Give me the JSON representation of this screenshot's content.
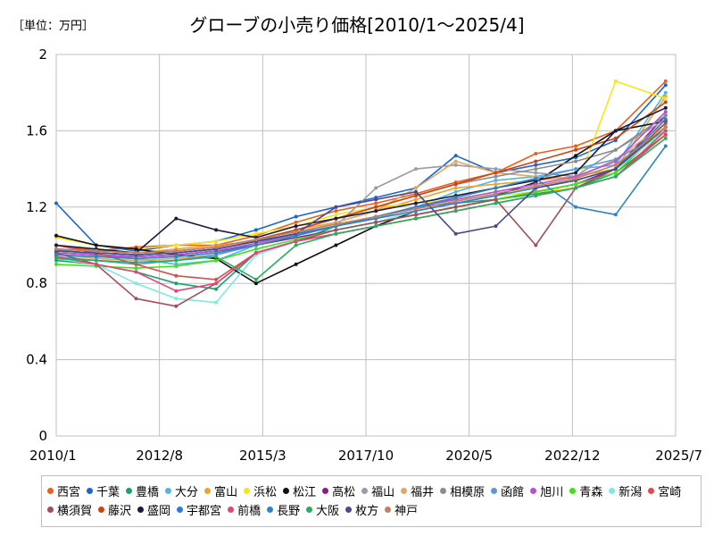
{
  "chart_data": {
    "type": "line",
    "title": "グローブの小売り価格[2010/1～2025/4]",
    "unit_label": "［単位：万円］",
    "xlabel": "",
    "ylabel": "",
    "x_tick_labels": [
      "2010/1",
      "2012/8",
      "2015/3",
      "2017/10",
      "2020/5",
      "2022/12",
      "2025/7"
    ],
    "x_tick_values": [
      2010.0,
      2012.583,
      2015.167,
      2017.75,
      2020.333,
      2022.917,
      2025.5
    ],
    "xlim": [
      2010.0,
      2025.5
    ],
    "y_tick_labels": [
      "0",
      "0.4",
      "0.8",
      "1.2",
      "1.6",
      "2"
    ],
    "y_tick_values": [
      0,
      0.4,
      0.8,
      1.2,
      1.6,
      2.0
    ],
    "ylim": [
      0,
      2
    ],
    "grid": true,
    "legend_position": "bottom",
    "x": [
      2010.0,
      2011.0,
      2012.0,
      2013.0,
      2014.0,
      2015.0,
      2016.0,
      2017.0,
      2018.0,
      2019.0,
      2020.0,
      2021.0,
      2022.0,
      2023.0,
      2024.0,
      2025.25
    ],
    "series": [
      {
        "name": "西宮",
        "color": "#E8601C",
        "values": [
          1.0,
          0.97,
          0.99,
          1.0,
          1.0,
          1.05,
          1.12,
          1.18,
          1.22,
          1.27,
          1.33,
          1.38,
          1.48,
          1.52,
          1.6,
          1.86
        ]
      },
      {
        "name": "千葉",
        "color": "#1965D6",
        "values": [
          1.22,
          1.0,
          0.97,
          1.0,
          1.02,
          1.08,
          1.15,
          1.2,
          1.25,
          1.3,
          1.47,
          1.38,
          1.42,
          1.46,
          1.55,
          1.84
        ]
      },
      {
        "name": "豊橋",
        "color": "#19A36B",
        "values": [
          0.92,
          0.9,
          0.86,
          0.8,
          0.77,
          0.96,
          1.02,
          1.1,
          1.15,
          1.2,
          1.22,
          1.24,
          1.27,
          1.3,
          1.38,
          1.58
        ]
      },
      {
        "name": "大分",
        "color": "#4DB8E6",
        "values": [
          0.98,
          0.95,
          0.93,
          0.9,
          0.92,
          1.0,
          1.06,
          1.1,
          1.14,
          1.2,
          1.28,
          1.34,
          1.36,
          1.4,
          1.42,
          1.8
        ]
      },
      {
        "name": "富山",
        "color": "#F1A22E",
        "values": [
          1.0,
          0.98,
          0.96,
          0.98,
          1.0,
          1.02,
          1.08,
          1.12,
          1.18,
          1.24,
          1.3,
          1.32,
          1.34,
          1.36,
          1.4,
          1.78
        ]
      },
      {
        "name": "浜松",
        "color": "#F5E61C",
        "values": [
          1.04,
          1.0,
          0.98,
          1.0,
          1.02,
          1.06,
          1.1,
          1.16,
          1.2,
          1.22,
          1.24,
          1.26,
          1.28,
          1.3,
          1.86,
          1.77
        ]
      },
      {
        "name": "松江",
        "color": "#111111",
        "values": [
          1.05,
          1.0,
          0.98,
          0.95,
          0.93,
          0.8,
          0.9,
          1.0,
          1.1,
          1.18,
          1.22,
          1.26,
          1.33,
          1.47,
          1.6,
          1.65
        ]
      },
      {
        "name": "高松",
        "color": "#8B1A8B",
        "values": [
          0.96,
          0.95,
          0.94,
          0.95,
          0.97,
          1.0,
          1.04,
          1.08,
          1.12,
          1.16,
          1.2,
          1.24,
          1.28,
          1.32,
          1.4,
          1.68
        ]
      },
      {
        "name": "福山",
        "color": "#9A9AA8",
        "values": [
          0.95,
          0.94,
          0.93,
          0.94,
          0.96,
          1.0,
          1.05,
          1.1,
          1.3,
          1.4,
          1.42,
          1.4,
          1.38,
          1.36,
          1.5,
          1.66
        ]
      },
      {
        "name": "福井",
        "color": "#E0A860",
        "values": [
          0.95,
          0.93,
          0.92,
          0.93,
          0.95,
          1.0,
          1.06,
          1.12,
          1.18,
          1.3,
          1.44,
          1.38,
          1.36,
          1.35,
          1.45,
          1.64
        ]
      },
      {
        "name": "相模原",
        "color": "#8C8C8C",
        "values": [
          0.97,
          0.96,
          0.95,
          0.96,
          0.98,
          1.02,
          1.08,
          1.14,
          1.2,
          1.26,
          1.32,
          1.36,
          1.4,
          1.44,
          1.5,
          1.68
        ]
      },
      {
        "name": "函館",
        "color": "#5B9BD5",
        "values": [
          0.94,
          0.92,
          0.9,
          0.92,
          0.95,
          1.0,
          1.05,
          1.1,
          1.15,
          1.2,
          1.25,
          1.3,
          1.35,
          1.4,
          1.45,
          1.6
        ]
      },
      {
        "name": "旭川",
        "color": "#B84FD6",
        "values": [
          0.96,
          0.95,
          0.94,
          0.95,
          0.97,
          1.01,
          1.06,
          1.1,
          1.15,
          1.2,
          1.24,
          1.28,
          1.32,
          1.36,
          1.44,
          1.7
        ]
      },
      {
        "name": "青森",
        "color": "#40E01A",
        "values": [
          0.9,
          0.89,
          0.88,
          0.89,
          0.92,
          0.98,
          1.03,
          1.08,
          1.12,
          1.16,
          1.2,
          1.24,
          1.28,
          1.32,
          1.38,
          1.62
        ]
      },
      {
        "name": "新潟",
        "color": "#7FE8E0",
        "values": [
          0.93,
          0.9,
          0.8,
          0.72,
          0.7,
          0.95,
          1.02,
          1.08,
          1.12,
          1.18,
          1.22,
          1.26,
          1.3,
          1.34,
          1.4,
          1.6
        ]
      },
      {
        "name": "宮崎",
        "color": "#D94D4D",
        "values": [
          1.0,
          0.96,
          0.9,
          0.84,
          0.82,
          0.96,
          1.02,
          1.06,
          1.1,
          1.14,
          1.18,
          1.22,
          1.26,
          1.3,
          1.36,
          1.58
        ]
      },
      {
        "name": "横須賀",
        "color": "#A0505A",
        "values": [
          0.96,
          0.9,
          0.72,
          0.68,
          0.8,
          0.96,
          1.02,
          1.08,
          1.12,
          1.16,
          1.2,
          1.24,
          1.0,
          1.3,
          1.4,
          1.64
        ]
      },
      {
        "name": "藤沢",
        "color": "#CC4411",
        "values": [
          0.98,
          0.97,
          0.96,
          0.97,
          0.99,
          1.03,
          1.08,
          1.14,
          1.2,
          1.26,
          1.32,
          1.38,
          1.44,
          1.5,
          1.56,
          1.75
        ]
      },
      {
        "name": "盛岡",
        "color": "#1A1A40",
        "values": [
          1.0,
          0.98,
          0.96,
          1.14,
          1.08,
          1.04,
          1.1,
          1.14,
          1.18,
          1.22,
          1.26,
          1.3,
          1.34,
          1.38,
          1.6,
          1.72
        ]
      },
      {
        "name": "宇都宮",
        "color": "#3377E0",
        "values": [
          0.97,
          0.96,
          0.95,
          0.96,
          0.98,
          1.02,
          1.06,
          1.1,
          1.14,
          1.18,
          1.22,
          1.26,
          1.3,
          1.34,
          1.4,
          1.66
        ]
      },
      {
        "name": "前橋",
        "color": "#E0467A",
        "values": [
          0.94,
          0.9,
          0.86,
          0.76,
          0.8,
          0.96,
          1.02,
          1.06,
          1.1,
          1.14,
          1.18,
          1.22,
          1.26,
          1.3,
          1.36,
          1.6
        ]
      },
      {
        "name": "長野",
        "color": "#2E86C1",
        "values": [
          0.95,
          0.94,
          0.93,
          0.94,
          0.96,
          1.0,
          1.05,
          1.1,
          1.15,
          1.2,
          1.25,
          1.3,
          1.35,
          1.2,
          1.16,
          1.52
        ]
      },
      {
        "name": "大阪",
        "color": "#27AE60",
        "values": [
          0.93,
          0.92,
          0.91,
          0.92,
          0.94,
          0.82,
          1.0,
          1.06,
          1.1,
          1.14,
          1.18,
          1.22,
          1.26,
          1.3,
          1.36,
          1.56
        ]
      },
      {
        "name": "枚方",
        "color": "#4A4A8A",
        "values": [
          0.97,
          0.96,
          0.95,
          0.96,
          0.98,
          1.02,
          1.06,
          1.2,
          1.24,
          1.28,
          1.06,
          1.1,
          1.3,
          1.34,
          1.4,
          1.62
        ]
      },
      {
        "name": "神戸",
        "color": "#C08060",
        "values": [
          0.98,
          0.97,
          0.96,
          0.97,
          0.99,
          1.03,
          1.07,
          1.11,
          1.15,
          1.19,
          1.23,
          1.27,
          1.31,
          1.35,
          1.42,
          1.62
        ]
      }
    ]
  }
}
